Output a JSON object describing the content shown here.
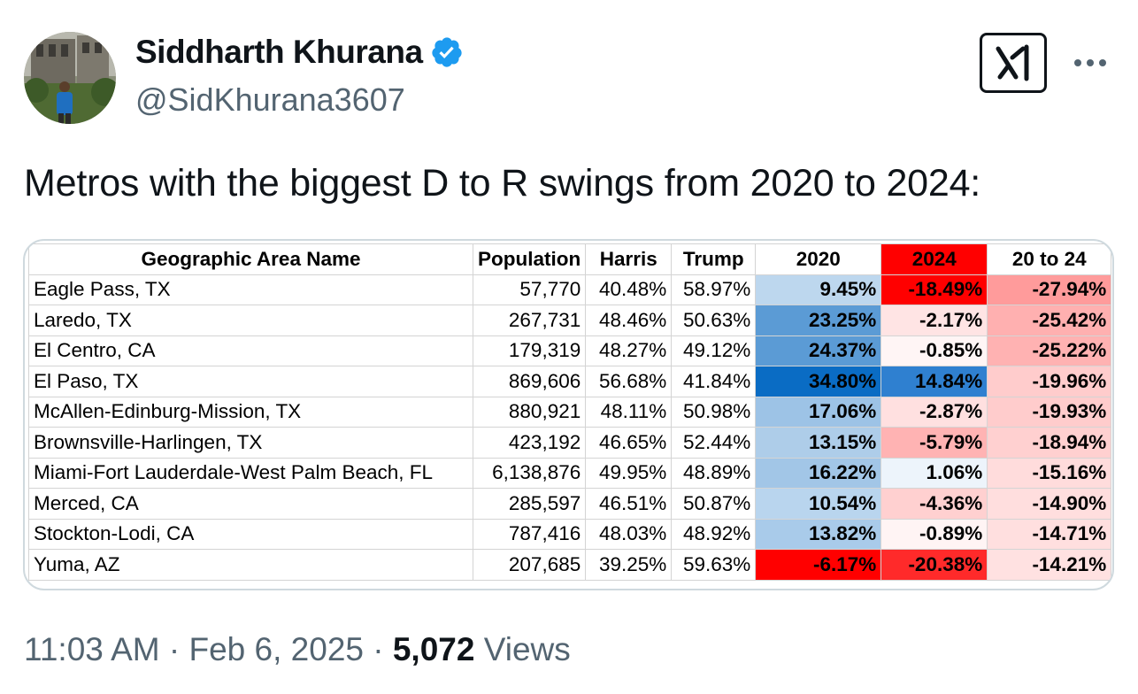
{
  "author": {
    "name": "Siddharth Khurana",
    "handle": "@SidKhurana3607",
    "verified_color": "#1d9bf0"
  },
  "tweet": {
    "text": "Metros with the biggest D to R swings from 2020 to 2024:",
    "time": "11:03 AM",
    "separator": "·",
    "date": "Feb 6, 2025",
    "views_count": "5,072",
    "views_label": "Views"
  },
  "table": {
    "headers": [
      "Geographic Area Name",
      "Population",
      "Harris",
      "Trump",
      "2020",
      "2024",
      "20 to 24"
    ],
    "rows": [
      {
        "area": "Eagle Pass, TX",
        "population": "57,770",
        "harris": "40.48%",
        "trump": "58.97%",
        "y2020": "9.45%",
        "y2024": "-18.49%",
        "swing": "-27.94%",
        "c2020": "#bdd7ee",
        "c2024": "#ff0000",
        "cswing": "#ff9b9b"
      },
      {
        "area": "Laredo, TX",
        "population": "267,731",
        "harris": "48.46%",
        "trump": "50.63%",
        "y2020": "23.25%",
        "y2024": "-2.17%",
        "swing": "-25.42%",
        "c2020": "#5b9bd5",
        "c2024": "#ffe4e4",
        "cswing": "#ffb0b0"
      },
      {
        "area": "El Centro, CA",
        "population": "179,319",
        "harris": "48.27%",
        "trump": "49.12%",
        "y2020": "24.37%",
        "y2024": "-0.85%",
        "swing": "-25.22%",
        "c2020": "#5b9bd5",
        "c2024": "#fff5f5",
        "cswing": "#ffb2b2"
      },
      {
        "area": "El Paso, TX",
        "population": "869,606",
        "harris": "56.68%",
        "trump": "41.84%",
        "y2020": "34.80%",
        "y2024": "14.84%",
        "swing": "-19.96%",
        "c2020": "#0a6cc4",
        "c2024": "#2f80d0",
        "cswing": "#ffcccc"
      },
      {
        "area": "McAllen-Edinburg-Mission, TX",
        "population": "880,921",
        "harris": "48.11%",
        "trump": "50.98%",
        "y2020": "17.06%",
        "y2024": "-2.87%",
        "swing": "-19.93%",
        "c2020": "#9dc3e6",
        "c2024": "#ffe0e0",
        "cswing": "#ffcccc"
      },
      {
        "area": "Brownsville-Harlingen, TX",
        "population": "423,192",
        "harris": "46.65%",
        "trump": "52.44%",
        "y2020": "13.15%",
        "y2024": "-5.79%",
        "swing": "-18.94%",
        "c2020": "#aecde9",
        "c2024": "#ffb3b3",
        "cswing": "#ffd0d0"
      },
      {
        "area": "Miami-Fort Lauderdale-West Palm Beach, FL",
        "population": "6,138,876",
        "harris": "49.95%",
        "trump": "48.89%",
        "y2020": "16.22%",
        "y2024": "1.06%",
        "swing": "-15.16%",
        "c2020": "#a2c6e7",
        "c2024": "#edf4fb",
        "cswing": "#ffdcdc"
      },
      {
        "area": "Merced, CA",
        "population": "285,597",
        "harris": "46.51%",
        "trump": "50.87%",
        "y2020": "10.54%",
        "y2024": "-4.36%",
        "swing": "-14.90%",
        "c2020": "#b9d5ee",
        "c2024": "#ffd0d0",
        "cswing": "#ffdede"
      },
      {
        "area": "Stockton-Lodi, CA",
        "population": "787,416",
        "harris": "48.03%",
        "trump": "48.92%",
        "y2020": "13.82%",
        "y2024": "-0.89%",
        "swing": "-14.71%",
        "c2020": "#a9cbea",
        "c2024": "#fff4f4",
        "cswing": "#ffdfdf"
      },
      {
        "area": "Yuma, AZ",
        "population": "207,685",
        "harris": "39.25%",
        "trump": "59.63%",
        "y2020": "-6.17%",
        "y2024": "-20.38%",
        "swing": "-14.21%",
        "c2020": "#ff0000",
        "c2024": "#ff2a2a",
        "cswing": "#ffe1e1"
      }
    ]
  }
}
